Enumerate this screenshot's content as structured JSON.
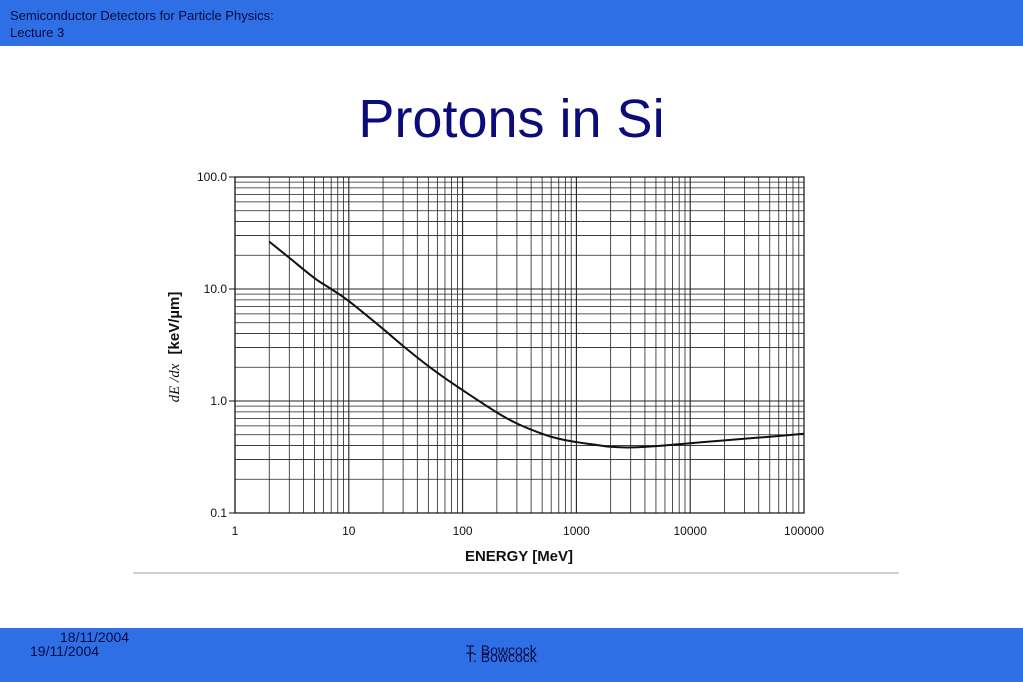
{
  "header": {
    "course_line1": "Semiconductor Detectors for Particle Physics:",
    "course_line2": "Lecture 3"
  },
  "slide": {
    "title": "Protons in Si"
  },
  "footer": {
    "date_1": "18/11/2004",
    "date_2": "19/11/2004",
    "author_1": "T. Bowcock",
    "author_2": "T. Bowcock"
  },
  "chart_data": {
    "type": "line",
    "xlabel": "ENERGY [MeV]",
    "ylabel_italic": "dE /dx",
    "ylabel_unit": "[keV/µm]",
    "x_scale": "log",
    "y_scale": "log",
    "xlim": [
      1,
      100000
    ],
    "ylim": [
      0.1,
      100
    ],
    "grid": true,
    "x_ticks": [
      1,
      10,
      100,
      1000,
      10000,
      100000
    ],
    "x_tick_labels": [
      "1",
      "10",
      "100",
      "1000",
      "10000",
      "100000"
    ],
    "y_ticks": [
      0.1,
      1,
      10,
      100
    ],
    "y_tick_labels": [
      "0.1",
      "1.0",
      "10.0",
      "100.0"
    ],
    "series": [
      {
        "x": [
          2,
          3,
          5,
          7,
          10,
          20,
          30,
          50,
          70,
          100,
          200,
          300,
          500,
          700,
          1000,
          1500,
          2000,
          3000,
          5000,
          10000,
          20000,
          50000,
          100000
        ],
        "y": [
          26.5,
          19,
          12.5,
          10,
          7.8,
          4.4,
          3.1,
          2.05,
          1.6,
          1.25,
          0.79,
          0.63,
          0.51,
          0.46,
          0.43,
          0.405,
          0.39,
          0.385,
          0.395,
          0.42,
          0.445,
          0.48,
          0.51
        ]
      }
    ]
  }
}
